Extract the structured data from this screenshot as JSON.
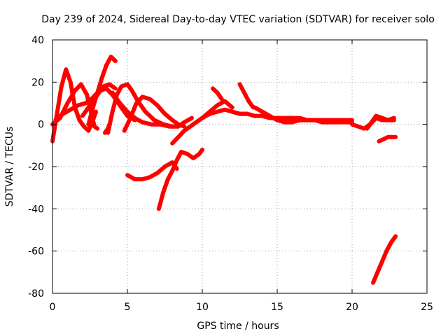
{
  "chart_data": {
    "type": "scatter",
    "title": "Day 239 of 2024, Sidereal Day-to-day VTEC variation (SDTVAR) for receiver solo",
    "xlabel": "GPS time / hours",
    "ylabel": "SDTVAR / TECUs",
    "xlim": [
      0,
      25
    ],
    "ylim": [
      -80,
      40
    ],
    "xticks": [
      0,
      5,
      10,
      15,
      20,
      25
    ],
    "yticks": [
      -80,
      -60,
      -40,
      -20,
      0,
      20,
      40
    ],
    "grid": true,
    "legend": "none",
    "series_color": "#ff0000",
    "series": [
      {
        "name": "trace-1",
        "x": [
          0.0,
          0.3,
          0.6,
          0.9,
          1.2,
          1.5,
          1.8,
          2.1,
          2.4,
          2.7,
          2.9
        ],
        "y": [
          -8,
          5,
          18,
          26,
          20,
          8,
          2,
          -1,
          -3,
          2,
          6
        ]
      },
      {
        "name": "trace-2",
        "x": [
          0.0,
          0.5,
          1.0,
          1.5,
          1.9,
          2.3,
          2.6,
          2.8,
          3.0
        ],
        "y": [
          0,
          3,
          10,
          16,
          19,
          14,
          5,
          -1,
          -2
        ]
      },
      {
        "name": "trace-3",
        "x": [
          0.2,
          0.7,
          1.2,
          1.7,
          2.2,
          2.6,
          3.0,
          3.4,
          3.8,
          4.2
        ],
        "y": [
          2,
          5,
          7,
          9,
          10,
          12,
          15,
          18,
          19,
          17
        ]
      },
      {
        "name": "trace-4",
        "x": [
          2.4,
          2.7,
          3.0,
          3.3,
          3.6,
          3.9,
          4.2
        ],
        "y": [
          0,
          8,
          15,
          22,
          28,
          32,
          30
        ]
      },
      {
        "name": "trace-5",
        "x": [
          2.0,
          2.4,
          2.8,
          3.2,
          3.6,
          4.0,
          4.5,
          5.0,
          5.5
        ],
        "y": [
          4,
          8,
          12,
          16,
          17,
          14,
          9,
          4,
          2
        ]
      },
      {
        "name": "trace-6",
        "x": [
          3.7,
          4.0,
          4.3,
          4.6,
          5.0,
          5.3,
          5.7,
          6.2,
          6.8,
          7.4,
          8.0
        ],
        "y": [
          -4,
          6,
          14,
          18,
          19,
          16,
          11,
          6,
          2,
          0,
          -1
        ]
      },
      {
        "name": "trace-7",
        "x": [
          4.0,
          4.5,
          5.0,
          5.5,
          6.0,
          6.6,
          7.2,
          7.8,
          8.4,
          8.8,
          9.3
        ],
        "y": [
          15,
          10,
          6,
          3,
          1,
          0,
          0,
          -1,
          -1,
          1,
          3
        ]
      },
      {
        "name": "trace-8",
        "x": [
          4.8,
          5.2,
          5.6,
          6.0,
          6.5,
          7.0,
          7.5,
          8.0,
          8.4,
          8.8
        ],
        "y": [
          -3,
          3,
          10,
          13,
          12,
          9,
          5,
          2,
          0,
          -1
        ]
      },
      {
        "name": "trace-9",
        "x": [
          3.5,
          3.7,
          3.8
        ],
        "y": [
          -4,
          -2,
          0
        ]
      },
      {
        "name": "trace-10",
        "x": [
          5.0,
          5.5,
          6.0,
          6.5,
          7.0,
          7.5,
          8.0,
          8.3
        ],
        "y": [
          -24,
          -26,
          -26,
          -25,
          -23,
          -20,
          -18,
          -21
        ]
      },
      {
        "name": "trace-11",
        "x": [
          7.1,
          7.4,
          7.7,
          8.0,
          8.3,
          8.6,
          9.0,
          9.4,
          9.8,
          10.0
        ],
        "y": [
          -40,
          -32,
          -26,
          -22,
          -17,
          -13,
          -14,
          -16,
          -14,
          -12
        ]
      },
      {
        "name": "trace-12",
        "x": [
          8.0,
          8.4,
          8.8,
          9.2,
          9.6,
          10.0,
          10.5,
          11.0,
          11.5,
          12.0,
          12.5,
          13.0
        ],
        "y": [
          -9,
          -6,
          -3,
          -1,
          1,
          3,
          5,
          6,
          7,
          6,
          5,
          5
        ]
      },
      {
        "name": "trace-13",
        "x": [
          10.0,
          10.5,
          11.0,
          11.5,
          12.0
        ],
        "y": [
          3,
          6,
          9,
          11,
          8
        ]
      },
      {
        "name": "trace-14",
        "x": [
          10.7,
          11.0,
          11.3
        ],
        "y": [
          17,
          15,
          12
        ]
      },
      {
        "name": "trace-15",
        "x": [
          12.5,
          12.8,
          13.1,
          13.4
        ],
        "y": [
          19,
          15,
          11,
          8
        ]
      },
      {
        "name": "trace-16",
        "x": [
          12.0,
          12.5,
          13.0,
          13.5,
          14.0,
          14.5,
          15.0,
          15.5,
          16.0,
          16.5,
          17.0
        ],
        "y": [
          6,
          5,
          5,
          4,
          4,
          3,
          3,
          2,
          2,
          2,
          2
        ]
      },
      {
        "name": "trace-17",
        "x": [
          13.5,
          14.0,
          14.5,
          15.0,
          15.5,
          16.0,
          16.5,
          17.0,
          17.5,
          18.0,
          18.5,
          19.0,
          19.5,
          20.0
        ],
        "y": [
          8,
          6,
          4,
          2,
          1,
          1,
          2,
          2,
          2,
          1,
          1,
          1,
          1,
          1
        ]
      },
      {
        "name": "trace-18",
        "x": [
          15.0,
          15.5,
          16.0,
          16.5,
          17.0,
          17.5,
          18.0,
          18.5,
          19.0,
          19.5,
          20.0
        ],
        "y": [
          3,
          3,
          3,
          3,
          2,
          2,
          2,
          2,
          2,
          2,
          2
        ]
      },
      {
        "name": "trace-19",
        "x": [
          20.0,
          20.4,
          20.8,
          21.2,
          21.6,
          22.0,
          22.4,
          22.8
        ],
        "y": [
          0,
          -1,
          -2,
          0,
          3,
          2,
          2,
          2
        ]
      },
      {
        "name": "trace-20",
        "x": [
          21.0,
          21.3,
          21.6,
          22.0,
          22.4,
          22.8
        ],
        "y": [
          -2,
          1,
          4,
          3,
          2,
          3
        ]
      },
      {
        "name": "trace-21",
        "x": [
          21.8,
          22.1,
          22.4,
          22.7,
          22.9
        ],
        "y": [
          -8,
          -7,
          -6,
          -6,
          -6
        ]
      },
      {
        "name": "trace-22",
        "x": [
          21.4,
          21.7,
          22.0,
          22.3,
          22.6,
          22.9
        ],
        "y": [
          -75,
          -70,
          -65,
          -60,
          -56,
          -53
        ]
      }
    ]
  }
}
